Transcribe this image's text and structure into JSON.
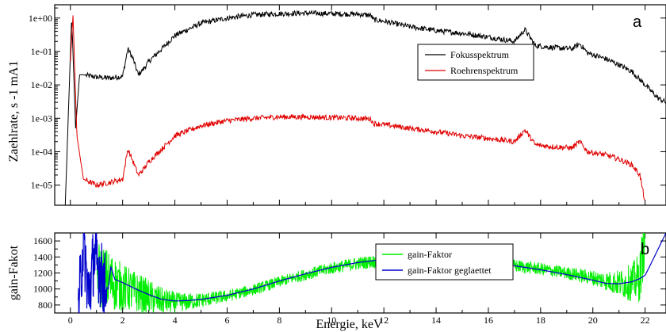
{
  "chart_data": [
    {
      "type": "line",
      "panel_label": "a",
      "ylabel": "Zaehlrate, s -1 mA1",
      "yscale": "log",
      "xlim": [
        -0.6,
        22.8
      ],
      "ylim": [
        2.5e-06,
        2.5
      ],
      "y_ticks": [
        "1e+00",
        "1e-01",
        "1e-02",
        "1e-03",
        "1e-04",
        "1e-05"
      ],
      "y_tick_values": [
        1,
        0.1,
        0.01,
        0.001,
        0.0001,
        1e-05
      ],
      "grid": false,
      "legend_position": "center-right",
      "series": [
        {
          "name": "Fokusspektrum",
          "color": "#000000",
          "x": [
            -0.2,
            0.05,
            0.2,
            0.35,
            0.5,
            0.8,
            1.0,
            1.5,
            2.0,
            2.2,
            2.4,
            2.6,
            2.8,
            3.0,
            3.5,
            4.0,
            5.0,
            6.0,
            7.0,
            8.0,
            9.0,
            10.0,
            11.0,
            11.5,
            11.6,
            12.0,
            13.0,
            14.0,
            15.0,
            16.0,
            17.0,
            17.4,
            17.8,
            18.5,
            19.2,
            19.5,
            19.8,
            20.5,
            21.0,
            21.5,
            22.0,
            22.5,
            22.8
          ],
          "y": [
            2e-06,
            1.2,
            0.0005,
            0.02,
            0.02,
            0.018,
            0.017,
            0.016,
            0.018,
            0.12,
            0.06,
            0.02,
            0.03,
            0.05,
            0.12,
            0.3,
            0.7,
            1.0,
            1.25,
            1.35,
            1.4,
            1.35,
            1.3,
            1.2,
            0.9,
            0.8,
            0.55,
            0.42,
            0.35,
            0.27,
            0.2,
            0.45,
            0.15,
            0.13,
            0.12,
            0.17,
            0.09,
            0.06,
            0.04,
            0.025,
            0.01,
            0.004,
            0.003
          ]
        },
        {
          "name": "Roehrenspektrum",
          "color": "#e00000",
          "x": [
            0.0,
            0.1,
            0.25,
            0.5,
            1.0,
            1.5,
            2.0,
            2.2,
            2.4,
            2.6,
            2.8,
            3.0,
            3.5,
            4.0,
            5.0,
            6.0,
            7.0,
            8.0,
            9.0,
            10.0,
            11.0,
            11.5,
            11.6,
            12.0,
            13.0,
            14.0,
            15.0,
            16.0,
            17.0,
            17.4,
            17.8,
            18.5,
            19.2,
            19.5,
            19.8,
            20.5,
            21.0,
            21.5,
            21.8,
            22.0
          ],
          "y": [
            0.05,
            1.2,
            0.0003,
            1.5e-05,
            1e-05,
            1.2e-05,
            1.5e-05,
            0.00012,
            5e-05,
            2e-05,
            3e-05,
            5e-05,
            0.00012,
            0.0003,
            0.0006,
            0.00085,
            0.001,
            0.0011,
            0.0011,
            0.00105,
            0.001,
            0.00095,
            0.0007,
            0.00065,
            0.0005,
            0.0004,
            0.0003,
            0.00025,
            0.0002,
            0.00045,
            0.00016,
            0.00014,
            0.00013,
            0.0002,
            0.0001,
            8e-05,
            6e-05,
            4e-05,
            2e-05,
            3e-06
          ]
        }
      ]
    },
    {
      "type": "line",
      "panel_label": "b",
      "ylabel": "gain-Fakot",
      "xlabel": "Energie, keV",
      "xlim": [
        -0.6,
        22.8
      ],
      "ylim": [
        700,
        1700
      ],
      "x_ticks": [
        "0",
        "2",
        "4",
        "6",
        "8",
        "10",
        "12",
        "14",
        "16",
        "18",
        "20",
        "22"
      ],
      "x_tick_values": [
        0,
        2,
        4,
        6,
        8,
        10,
        12,
        14,
        16,
        18,
        20,
        22
      ],
      "y_ticks": [
        "800",
        "1000",
        "1200",
        "1400",
        "1600"
      ],
      "y_tick_values": [
        800,
        1000,
        1200,
        1400,
        1600
      ],
      "grid": false,
      "legend_position": "bottom-center",
      "series": [
        {
          "name": "gain-Faktor",
          "color": "#00ee00",
          "x": [
            1.0,
            1.5,
            2.0,
            2.5,
            3.0,
            3.5,
            4.0,
            4.5,
            5.0,
            6.0,
            7.0,
            8.0,
            9.0,
            10.0,
            11.0,
            12.0,
            13.0,
            14.0,
            15.0,
            16.0,
            17.0,
            18.0,
            19.0,
            20.0,
            20.5,
            21.0,
            21.5,
            21.8,
            22.0
          ],
          "y": [
            1180,
            1100,
            1020,
            960,
            900,
            850,
            830,
            840,
            860,
            910,
            990,
            1090,
            1180,
            1260,
            1320,
            1360,
            1385,
            1390,
            1370,
            1330,
            1290,
            1250,
            1200,
            1140,
            1100,
            1070,
            1080,
            1150,
            1700
          ],
          "noise_amplitude": [
            450,
            380,
            300,
            260,
            220,
            170,
            130,
            110,
            95,
            75,
            70,
            70,
            72,
            75,
            80,
            85,
            90,
            90,
            88,
            85,
            80,
            78,
            80,
            95,
            120,
            170,
            240,
            320,
            400
          ]
        },
        {
          "name": "gain-Faktor geglaettet",
          "color": "#0000cc",
          "x": [
            0.3,
            0.5,
            0.7,
            0.9,
            1.1,
            1.3,
            1.45,
            1.55,
            1.7,
            2.0,
            2.5,
            3.0,
            3.5,
            4.0,
            4.5,
            5.0,
            6.0,
            7.0,
            8.0,
            9.0,
            10.0,
            11.0,
            12.0,
            13.0,
            14.0,
            15.0,
            16.0,
            17.0,
            18.0,
            19.0,
            20.0,
            20.5,
            21.0,
            21.5,
            21.8,
            22.0,
            22.2,
            22.5,
            22.8
          ],
          "y": [
            700,
            1600,
            900,
            1400,
            1250,
            1050,
            1000,
            1280,
            1120,
            1080,
            1000,
            930,
            870,
            850,
            855,
            870,
            920,
            1000,
            1100,
            1190,
            1270,
            1330,
            1370,
            1390,
            1390,
            1360,
            1320,
            1290,
            1240,
            1180,
            1110,
            1070,
            1065,
            1090,
            1130,
            1170,
            1300,
            1500,
            1700
          ]
        }
      ]
    }
  ]
}
